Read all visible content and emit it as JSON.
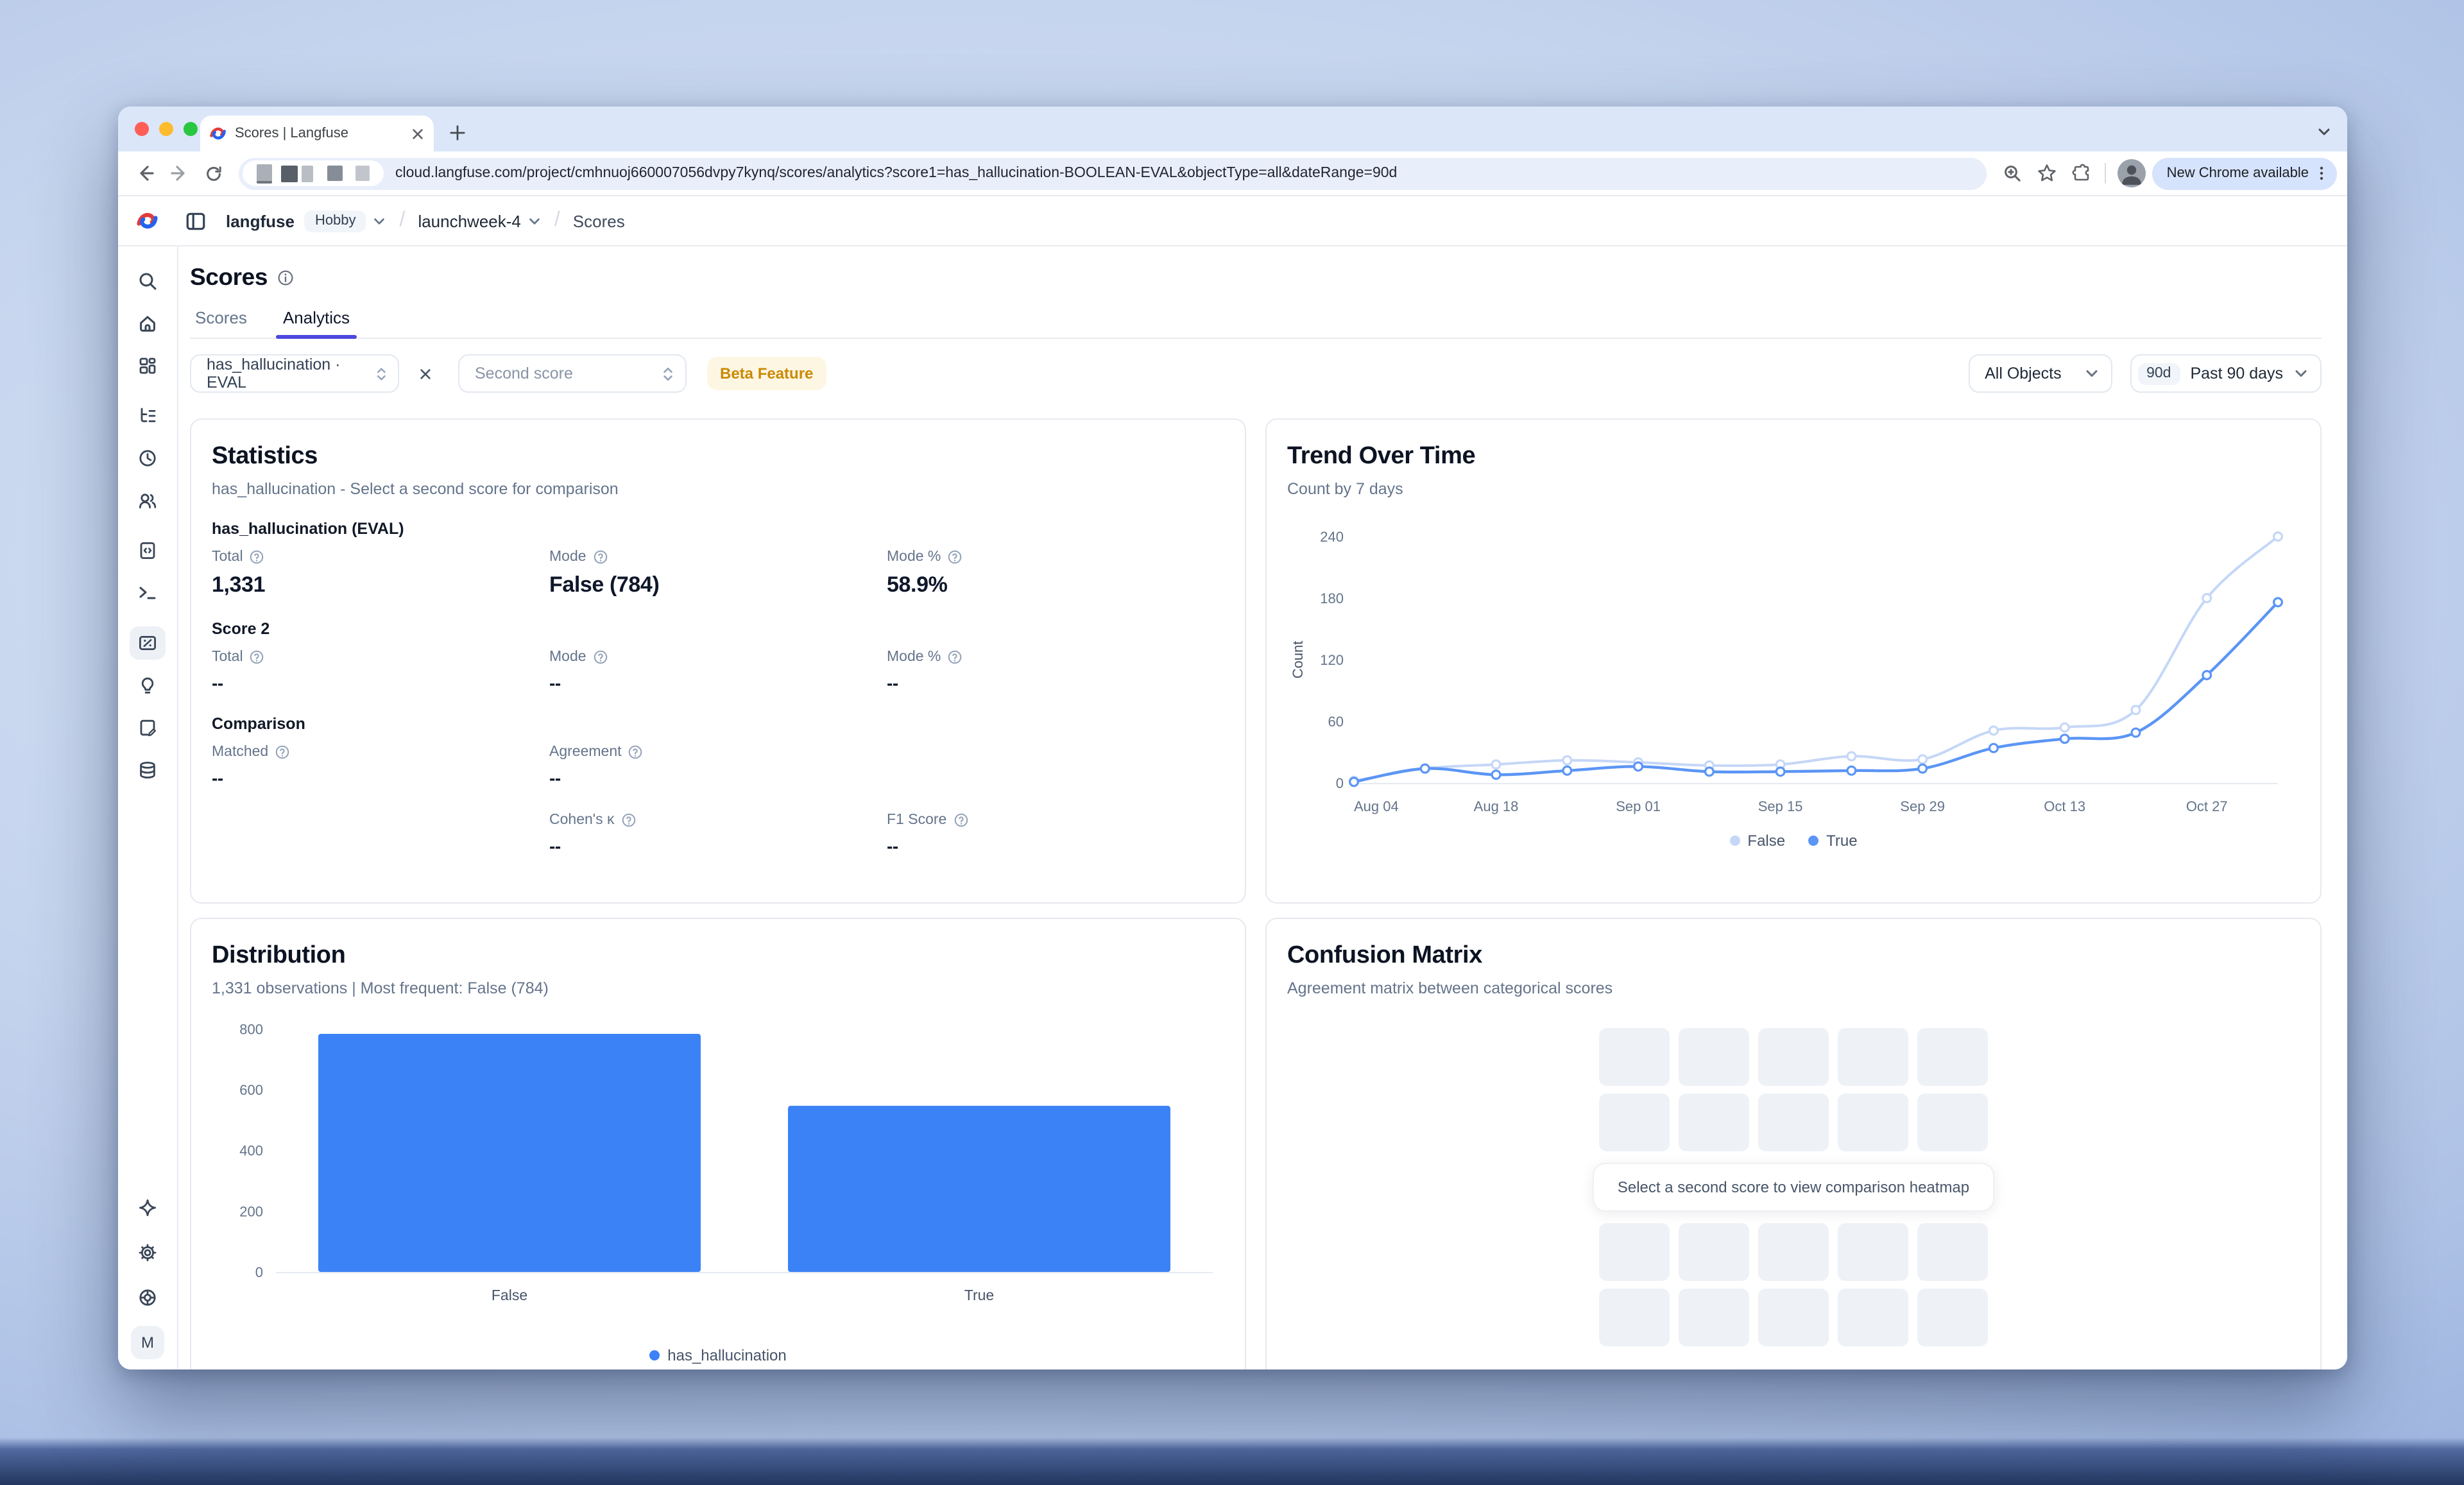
{
  "browser": {
    "tab_title": "Scores | Langfuse",
    "url": "cloud.langfuse.com/project/cmhnuoj660007056dvpy7kynq/scores/analytics?score1=has_hallucination-BOOLEAN-EVAL&objectType=all&dateRange=90d",
    "update_button": "New Chrome available"
  },
  "breadcrumb": {
    "org": "langfuse",
    "plan": "Hobby",
    "separator": "/",
    "project": "launchweek-4",
    "page": "Scores"
  },
  "sidebar": {
    "top_icons": [
      "search",
      "home",
      "dashboards",
      "tracing",
      "sessions",
      "users",
      "prompts",
      "playground",
      "scores",
      "annotations",
      "datasets",
      "exports"
    ],
    "active_icon": "scores",
    "bottom_icons": [
      "whats-new",
      "settings",
      "support"
    ],
    "profile_initial": "M"
  },
  "page": {
    "title": "Scores",
    "tabs": [
      "Scores",
      "Analytics"
    ],
    "active_tab": "Analytics"
  },
  "filters": {
    "score1": "has_hallucination · EVAL",
    "second_score_placeholder": "Second score",
    "beta_badge": "Beta Feature",
    "objects": "All Objects",
    "range_short": "90d",
    "range_label": "Past 90 days"
  },
  "statistics": {
    "title": "Statistics",
    "subtitle": "has_hallucination - Select a second score for comparison",
    "score1": {
      "heading": "has_hallucination (EVAL)",
      "metrics": [
        {
          "label": "Total",
          "value": "1,331"
        },
        {
          "label": "Mode",
          "value": "False (784)"
        },
        {
          "label": "Mode %",
          "value": "58.9%"
        }
      ]
    },
    "score2": {
      "heading": "Score 2",
      "metrics": [
        {
          "label": "Total",
          "value": "--"
        },
        {
          "label": "Mode",
          "value": "--"
        },
        {
          "label": "Mode %",
          "value": "--"
        }
      ]
    },
    "comparison": {
      "heading": "Comparison",
      "row1": [
        {
          "label": "Matched",
          "value": "--"
        },
        {
          "label": "Agreement",
          "value": "--"
        }
      ],
      "row2": [
        {
          "label": "Cohen's κ",
          "value": "--"
        },
        {
          "label": "F1 Score",
          "value": "--"
        }
      ]
    }
  },
  "chart_data": [
    {
      "type": "line",
      "title": "Trend Over Time",
      "subtitle": "Count by 7 days",
      "ylabel": "Count",
      "x": [
        "Aug 04",
        "Aug 11",
        "Aug 18",
        "Aug 25",
        "Sep 01",
        "Sep 08",
        "Sep 15",
        "Sep 22",
        "Sep 29",
        "Oct 06",
        "Oct 13",
        "Oct 20",
        "Oct 27",
        "Nov 03"
      ],
      "x_tick_every": 2,
      "yticks": [
        0,
        60,
        120,
        180,
        240
      ],
      "ylim": [
        0,
        250
      ],
      "legend_position": "bottom",
      "grid": false,
      "series": [
        {
          "name": "False",
          "color": "#c5d7f7",
          "values": [
            2,
            14,
            18,
            22,
            20,
            17,
            18,
            26,
            23,
            51,
            54,
            71,
            180,
            240
          ]
        },
        {
          "name": "True",
          "color": "#5b95f5",
          "values": [
            1,
            14,
            8,
            12,
            16,
            11,
            11,
            12,
            14,
            34,
            43,
            49,
            105,
            176
          ]
        }
      ]
    },
    {
      "type": "bar",
      "title": "Distribution",
      "subtitle": "1,331 observations | Most frequent: False (784)",
      "categories": [
        "False",
        "True"
      ],
      "values": [
        784,
        547
      ],
      "yticks": [
        0,
        200,
        400,
        600,
        800
      ],
      "ylim": [
        0,
        820
      ],
      "series_name": "has_hallucination",
      "color": "#3b82f6",
      "legend_position": "bottom",
      "grid": false
    }
  ],
  "confusion": {
    "title": "Confusion Matrix",
    "subtitle": "Agreement matrix between categorical scores",
    "message": "Select a second score to view comparison heatmap",
    "grid_cols": 5,
    "grid_rows": 4
  },
  "colors": {
    "accent_tab": "#4b48df",
    "bar_blue": "#3b82f6",
    "line_false": "#c5d7f7",
    "line_true": "#5b95f5",
    "beta_text": "#ca8a04",
    "traffic_close": "#ff5e57",
    "traffic_min": "#febb2e",
    "traffic_zoom": "#28c73f"
  }
}
